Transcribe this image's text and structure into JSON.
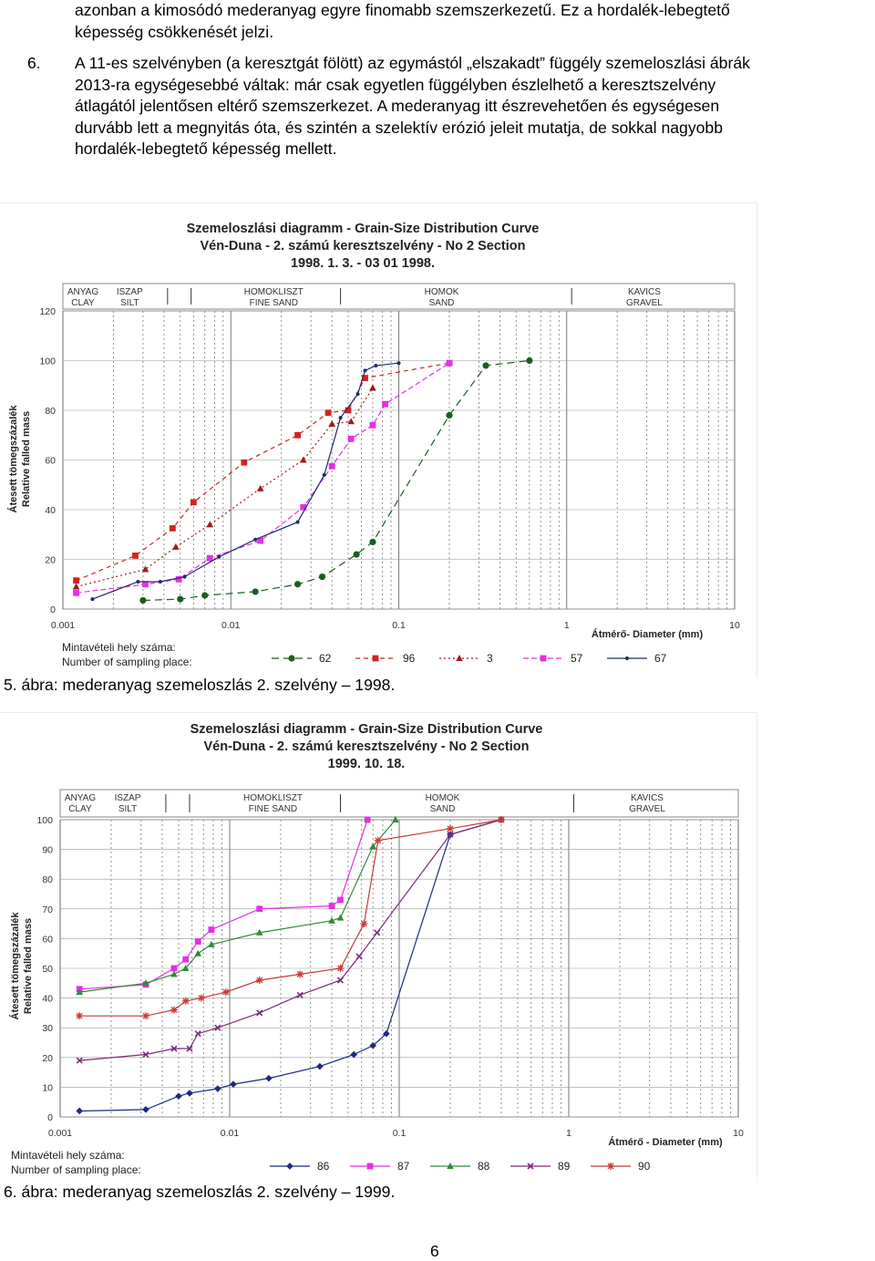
{
  "text": {
    "top_lines": [
      "azonban a kimosódó mederanyag egyre finomabb szemszerkezetű. Ez a hordalék-lebegtető",
      "képesség csökkenését jelzi."
    ],
    "item_number": "6.",
    "item_lines": [
      "A 11-es szelvényben (a keresztgát fölött) az egymástól „elszakadt” függély szemeloszlási ábrák",
      "2013-ra egységesebbé váltak: már csak egyetlen függélyben észlelhető a keresztszelvény",
      "átlagától jelentősen eltérő szemszerkezet. A mederanyag itt észrevehetően és egységesen",
      "durvább lett a megnyitás óta, és szintén a szelektív erózió jeleit mutatja, de sokkal nagyobb",
      "hordalék-lebegtető képesség mellett."
    ],
    "caption1": "5. ábra: mederanyag szemeloszlás 2. szelvény – 1998.",
    "caption2": "6. ábra: mederanyag szemeloszlás 2. szelvény – 1999.",
    "page_number": "6"
  },
  "chart_data": [
    {
      "type": "line",
      "title": "Szemeloszlási diagramm - Grain-Size Distribution Curve",
      "subtitle": "Vén-Duna - 2. számú keresztszelvény - No 2 Section",
      "date": "1998. 1. 3. - 03 01 1998.",
      "xlabel": "Átmérő- Diameter   (mm)",
      "ylabel": "Átesett tömegszázalék",
      "ylabel2": "Relative falled mass",
      "x_scale": "log",
      "xlim": [
        0.001,
        10
      ],
      "ylim": [
        0,
        120
      ],
      "x_ticks": [
        "0.001",
        "0.01",
        "0.1",
        "1",
        "10"
      ],
      "y_ticks": [
        "0",
        "20",
        "40",
        "60",
        "80",
        "100",
        "120"
      ],
      "classes": [
        {
          "hu": "ANYAG",
          "en": "CLAY"
        },
        {
          "hu": "ISZAP",
          "en": "SILT"
        },
        {
          "hu": "HOMOKLISZT",
          "en": "FINE SAND"
        },
        {
          "hu": "HOMOK",
          "en": "SAND"
        },
        {
          "hu": "KAVICS",
          "en": "GRAVEL"
        }
      ],
      "legend_title": [
        "Mintavételi hely száma:",
        "Number of sampling place:"
      ],
      "series": [
        {
          "name": "62",
          "color": "#1a5e20",
          "marker": "circle",
          "dash": "8,5",
          "x": [
            0.003,
            0.005,
            0.007,
            0.014,
            0.025,
            0.035,
            0.056,
            0.07,
            0.2,
            0.33,
            0.6
          ],
          "y": [
            3.5,
            4,
            5.5,
            7,
            10,
            13,
            22,
            27,
            78,
            98,
            100
          ]
        },
        {
          "name": "96",
          "color": "#d42222",
          "marker": "square",
          "dash": "5,4",
          "x": [
            0.0012,
            0.0027,
            0.0045,
            0.006,
            0.012,
            0.025,
            0.038,
            0.05,
            0.063,
            0.2
          ],
          "y": [
            11.5,
            21.5,
            32.5,
            43,
            59,
            70,
            79,
            80,
            93,
            99
          ]
        },
        {
          "name": "3",
          "color": "#9e1b1b",
          "marker": "triangle",
          "dash": "2,3",
          "x": [
            0.0012,
            0.0031,
            0.0047,
            0.0075,
            0.015,
            0.027,
            0.04,
            0.052,
            0.07
          ],
          "y": [
            9,
            16,
            25,
            34,
            48.5,
            60,
            74.5,
            75.5,
            89
          ]
        },
        {
          "name": "57",
          "color": "#e62ee6",
          "marker": "square",
          "dash": "6,3",
          "x": [
            0.0012,
            0.0031,
            0.0049,
            0.0075,
            0.015,
            0.027,
            0.04,
            0.052,
            0.07,
            0.083,
            0.2
          ],
          "y": [
            6.5,
            10,
            12,
            20.5,
            27.5,
            41,
            57.5,
            68.5,
            74,
            82.5,
            99
          ]
        },
        {
          "name": "67",
          "color": "#1f2a6e",
          "marker": "dot",
          "dash": "",
          "x": [
            0.0015,
            0.0028,
            0.0038,
            0.0053,
            0.0085,
            0.014,
            0.025,
            0.036,
            0.045,
            0.057,
            0.063,
            0.073,
            0.1
          ],
          "y": [
            4,
            11,
            11,
            13,
            21,
            28,
            35,
            54,
            77,
            86.5,
            96,
            98,
            99
          ]
        }
      ]
    },
    {
      "type": "line",
      "title": "Szemeloszlási diagramm - Grain-Size Distribution Curve",
      "subtitle": "Vén-Duna - 2. számú keresztszelvény - No 2 Section",
      "date": "1999. 10. 18.",
      "xlabel": "Átmérő - Diameter (mm)",
      "ylabel": "Átesett tömegszázalék",
      "ylabel2": "Relative falled mass",
      "x_scale": "log",
      "xlim": [
        0.001,
        10
      ],
      "ylim": [
        0,
        100
      ],
      "x_ticks": [
        "0.001",
        "0.01",
        "0.1",
        "1",
        "10"
      ],
      "y_ticks": [
        "0",
        "10",
        "20",
        "30",
        "40",
        "50",
        "60",
        "70",
        "80",
        "90",
        "100"
      ],
      "classes": [
        {
          "hu": "ANYAG",
          "en": "CLAY"
        },
        {
          "hu": "ISZAP",
          "en": "SILT"
        },
        {
          "hu": "HOMOKLISZT",
          "en": "FINE SAND"
        },
        {
          "hu": "HOMOK",
          "en": "SAND"
        },
        {
          "hu": "KAVICS",
          "en": "GRAVEL"
        }
      ],
      "legend_title": [
        "Mintavételi hely száma:",
        "Number of sampling place:"
      ],
      "series": [
        {
          "name": "86",
          "color": "#1c2a80",
          "marker": "diamond",
          "x": [
            0.0013,
            0.0032,
            0.005,
            0.0058,
            0.0085,
            0.0105,
            0.017,
            0.034,
            0.054,
            0.07,
            0.084,
            0.2,
            0.4
          ],
          "y": [
            2,
            2.5,
            7,
            8,
            9.5,
            11,
            13,
            17,
            21,
            24,
            28,
            95,
            100
          ]
        },
        {
          "name": "87",
          "color": "#e62ee6",
          "marker": "square",
          "x": [
            0.0013,
            0.0032,
            0.0047,
            0.0055,
            0.0065,
            0.0078,
            0.015,
            0.04,
            0.045,
            0.065
          ],
          "y": [
            43,
            44.5,
            50,
            53,
            59,
            63,
            70,
            71,
            73,
            100
          ]
        },
        {
          "name": "88",
          "color": "#2e8b3a",
          "marker": "triangle",
          "x": [
            0.0013,
            0.0032,
            0.0047,
            0.0055,
            0.0065,
            0.0078,
            0.015,
            0.04,
            0.045,
            0.07,
            0.095
          ],
          "y": [
            42,
            45,
            48,
            50,
            55,
            58,
            62,
            66,
            67,
            91,
            100
          ]
        },
        {
          "name": "89",
          "color": "#7a2a7a",
          "marker": "cross",
          "x": [
            0.0013,
            0.0032,
            0.0047,
            0.0058,
            0.0065,
            0.0085,
            0.015,
            0.026,
            0.045,
            0.058,
            0.074,
            0.2,
            0.4
          ],
          "y": [
            19,
            21,
            23,
            23,
            28,
            30,
            35,
            41,
            46,
            54,
            62,
            95,
            100
          ]
        },
        {
          "name": "90",
          "color": "#c93a3a",
          "marker": "star",
          "x": [
            0.0013,
            0.0032,
            0.0047,
            0.0055,
            0.0068,
            0.0095,
            0.015,
            0.026,
            0.045,
            0.062,
            0.075,
            0.2,
            0.4
          ],
          "y": [
            34,
            34,
            36,
            39,
            40,
            42,
            46,
            48,
            50,
            65,
            93,
            97,
            100
          ]
        }
      ]
    }
  ]
}
